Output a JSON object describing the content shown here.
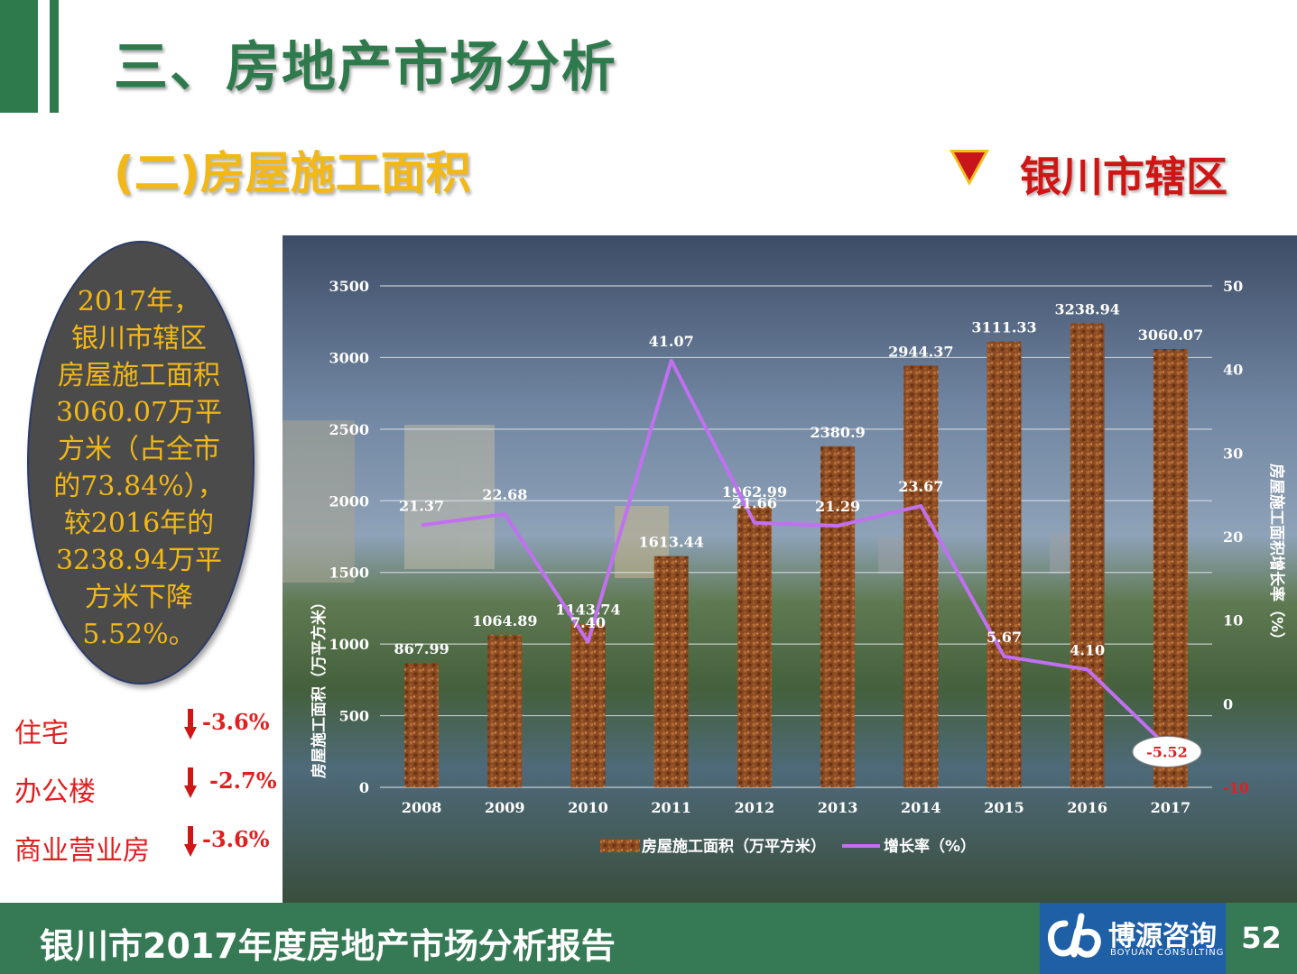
{
  "header": {
    "title": "三、房地产市场分析",
    "subtitle": "(二)房屋施工面积",
    "region": "银川市辖区"
  },
  "summary": {
    "lines": [
      "2017年，",
      "银川市辖区",
      "房屋施工面积",
      "3060.07万平",
      "方米（占全市",
      "的73.84%），",
      "较2016年的",
      "3238.94万平",
      "方米下降",
      "5.52%。"
    ]
  },
  "sectors": [
    {
      "label": "住宅",
      "change": "-3.6%"
    },
    {
      "label": "办公楼",
      "change": "-2.7%"
    },
    {
      "label": "商业营业房",
      "change": "-3.6%"
    }
  ],
  "colors": {
    "brand_green": "#2e7a4c",
    "subtitle_gold": "#f2b817",
    "alert_red": "#d01515",
    "bar_brown": "#8b4a22",
    "line_violet": "#c070f0"
  },
  "chart_data": {
    "type": "bar",
    "categories": [
      "2008",
      "2009",
      "2010",
      "2011",
      "2012",
      "2013",
      "2014",
      "2015",
      "2016",
      "2017"
    ],
    "series": [
      {
        "name": "房屋施工面积（万平方米）",
        "type": "bar",
        "axis": "left",
        "values": [
          867.99,
          1064.89,
          1143.74,
          1613.44,
          1962.99,
          2380.9,
          2944.37,
          3111.33,
          3238.94,
          3060.07
        ],
        "labels": [
          "867.99",
          "1064.89",
          "1143.74",
          "1613.44",
          "1962.99",
          "2380.9",
          "2944.37",
          "3111.33",
          "3238.94",
          "3060.07"
        ]
      },
      {
        "name": "增长率（%）",
        "type": "line",
        "axis": "right",
        "values": [
          21.37,
          22.68,
          7.4,
          41.07,
          21.66,
          21.29,
          23.67,
          5.67,
          4.1,
          -5.52
        ],
        "labels": [
          "21.37",
          "22.68",
          "7.40",
          "41.07",
          "21.66",
          "21.29",
          "23.67",
          "5.67",
          "4.10",
          "-5.52"
        ]
      }
    ],
    "ylabel": "房屋施工面积（万平方米）",
    "y2label": "房屋施工面积增长率（%）",
    "ylim": [
      0,
      3500
    ],
    "y2lim": [
      -10,
      50
    ],
    "yticks": [
      "0",
      "500",
      "1000",
      "1500",
      "2000",
      "2500",
      "3000",
      "3500"
    ],
    "y2ticks": [
      "-10",
      "0",
      "10",
      "20",
      "30",
      "40",
      "50"
    ],
    "grid": true,
    "legend": "bottom"
  },
  "footer": {
    "title": "银川市2017年度房地产市场分析报告",
    "logo_name": "博源咨询",
    "logo_sub": "BOYUAN CONSULTING",
    "page": "52"
  }
}
